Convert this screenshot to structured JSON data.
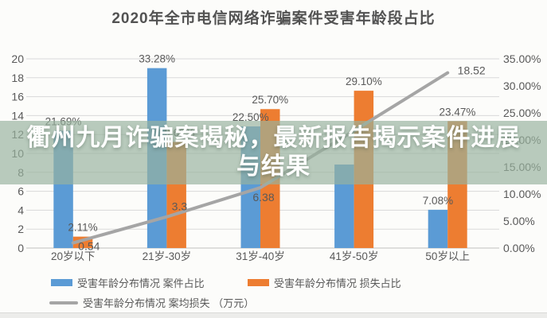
{
  "title": "2020年全市电信网络诈骗案件受害年龄段占比",
  "overlay_banner": {
    "line1": "衢州九月诈骗案揭秘，最新报告揭示案件进展",
    "line2": "与结果",
    "band_color": "rgba(152,178,158,0.68)",
    "text_color": "#ffffff"
  },
  "chart_data": {
    "type": "bar",
    "subtype": "bar+line combo",
    "title": "2020年全市电信网络诈骗案件受害年龄段占比",
    "categories": [
      "20岁以下",
      "21岁-30岁",
      "31岁-40岁",
      "41岁-50岁",
      "50岁以上"
    ],
    "series": [
      {
        "key": "case-share",
        "name": "受害年龄分布情况 案件占比",
        "type": "bar",
        "axis": "right",
        "color": "#5B9BD5",
        "values": [
          21.69,
          33.28,
          22.5,
          15.45,
          7.08
        ],
        "labels": [
          "21.69%",
          "33.28%",
          "22.50%",
          "",
          "7.08%"
        ]
      },
      {
        "key": "loss-share",
        "name": "受害年龄分布情况 损失占比",
        "type": "bar",
        "axis": "right",
        "color": "#ED7D31",
        "values": [
          2.11,
          19.62,
          25.7,
          29.1,
          23.47
        ],
        "labels": [
          "2.11%",
          "19.62%",
          "25.70%",
          "29.10%",
          "23.47%"
        ]
      },
      {
        "key": "avg-loss",
        "name": "受害年龄分布情况 案均损失 （万元）",
        "type": "line",
        "axis": "left",
        "color": "#A5A5A5",
        "values": [
          0.54,
          3.3,
          6.38,
          12.4,
          18.52
        ],
        "labels": [
          "0.54",
          "3.3",
          "6.38",
          "",
          "18.52"
        ]
      }
    ],
    "left_axis": {
      "min": 0,
      "max": 20,
      "step": 2,
      "tick_labels": [
        "0",
        "2",
        "4",
        "6",
        "8",
        "10",
        "12",
        "14",
        "16",
        "18",
        "20"
      ]
    },
    "right_axis": {
      "min": 0,
      "max": 35,
      "step": 5,
      "tick_labels": [
        "0.00%",
        "5.00%",
        "10.00%",
        "15.00%",
        "20.00%",
        "25.00%",
        "30.00%",
        "35.00%"
      ]
    },
    "grid": true,
    "legend_position": "bottom",
    "colors": {
      "grid": "#D9D9D9",
      "baseline": "#BFBFBF",
      "axis_text": "#595959",
      "label_text": "#595959"
    }
  }
}
